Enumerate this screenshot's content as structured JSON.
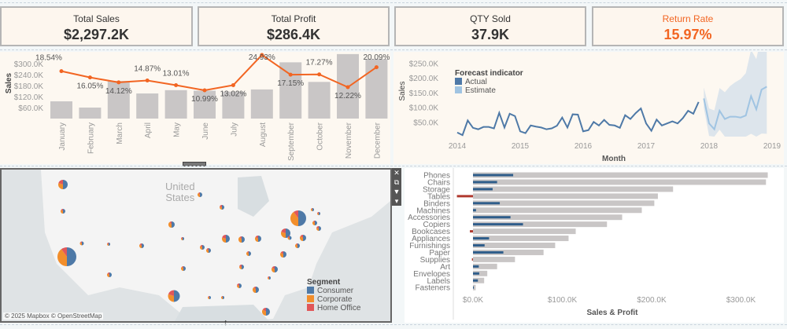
{
  "kpis": [
    {
      "title": "Total Sales",
      "value": "$2,297.2K"
    },
    {
      "title": "Total Profit",
      "value": "$286.4K"
    },
    {
      "title": "QTY Sold",
      "value": "37.9K"
    },
    {
      "title": "Return Rate",
      "value": "15.97%"
    }
  ],
  "colors": {
    "accent": "#f26522",
    "bar": "#c9c6c6",
    "actual": "#4e79a7",
    "estimate": "#a0c4e2",
    "negative": "#b03a2e",
    "consumer": "#4e79a7",
    "corporate": "#f28e2b",
    "home_office": "#e15759"
  },
  "chart_data": [
    {
      "type": "bar",
      "ylabel": "Sales",
      "yticks": [
        "$60.0K",
        "$120.0K",
        "$180.0K",
        "$240.0K",
        "$300.0K"
      ],
      "categories": [
        "January",
        "February",
        "March",
        "April",
        "May",
        "June",
        "July",
        "August",
        "September",
        "October",
        "November",
        "December"
      ],
      "values": [
        94000,
        60000,
        205000,
        137000,
        155000,
        152000,
        147000,
        159000,
        307000,
        200000,
        352000,
        325000
      ],
      "line": {
        "values": [
          18.54,
          16.05,
          14.12,
          14.87,
          13.01,
          10.99,
          13.02,
          24.93,
          17.15,
          17.27,
          12.22,
          20.09
        ],
        "labels": [
          "18.54%",
          "16.05%",
          "14.12%",
          "14.87%",
          "13.01%",
          "10.99%",
          "13.02%",
          "24.93%",
          "17.15%",
          "17.27%",
          "12.22%",
          "20.09%"
        ]
      }
    },
    {
      "type": "line",
      "xlabel": "Month",
      "ylabel": "Sales",
      "yticks": [
        "$50.0K",
        "$100.0K",
        "$150.0K",
        "$200.0K",
        "$250.0K"
      ],
      "xticks": [
        "2014",
        "2015",
        "2016",
        "2017",
        "2018",
        "2019"
      ],
      "legend_title": "Forecast indicator",
      "legend": [
        "Actual",
        "Estimate"
      ],
      "actual": [
        14,
        5,
        55,
        30,
        25,
        33,
        33,
        28,
        81,
        31,
        78,
        70,
        18,
        12,
        38,
        34,
        31,
        25,
        28,
        37,
        65,
        31,
        76,
        75,
        18,
        22,
        50,
        38,
        57,
        40,
        38,
        30,
        73,
        60,
        80,
        96,
        45,
        20,
        58,
        38,
        45,
        52,
        45,
        63,
        88,
        78,
        118
      ],
      "estimate": [
        130,
        45,
        25,
        88,
        60,
        68,
        68,
        65,
        72,
        138,
        93,
        160,
        170
      ],
      "units": "thousands USD, monthly from Jan 2014"
    },
    {
      "type": "bar",
      "orientation": "horizontal",
      "xlabel": "Sales & Profit",
      "xticks": [
        "$0.0K",
        "$100.0K",
        "$200.0K",
        "$300.0K"
      ],
      "categories": [
        "Phones",
        "Chairs",
        "Storage",
        "Tables",
        "Binders",
        "Machines",
        "Accessories",
        "Copiers",
        "Bookcases",
        "Appliances",
        "Furnishings",
        "Paper",
        "Supplies",
        "Art",
        "Envelopes",
        "Labels",
        "Fasteners"
      ],
      "sales": [
        330,
        328,
        224,
        207,
        203,
        189,
        167,
        150,
        115,
        107,
        92,
        79,
        47,
        27,
        16,
        12.5,
        3
      ],
      "profit": [
        45,
        27,
        22,
        -18,
        30,
        3.4,
        42,
        56,
        -3.5,
        18,
        13,
        34,
        -1.2,
        6.5,
        7,
        5.5,
        0.9
      ],
      "units": "thousands USD"
    }
  ],
  "map": {
    "attribution": "© 2025 Mapbox © OpenStreetMap",
    "country_label_1": "United",
    "country_label_2": "States",
    "legend_title": "Segment",
    "legend": [
      "Consumer",
      "Corporate",
      "Home Office"
    ]
  },
  "toolbar": {
    "close": "✕",
    "popout": "⧉",
    "filter": "▼",
    "more": "▾"
  }
}
